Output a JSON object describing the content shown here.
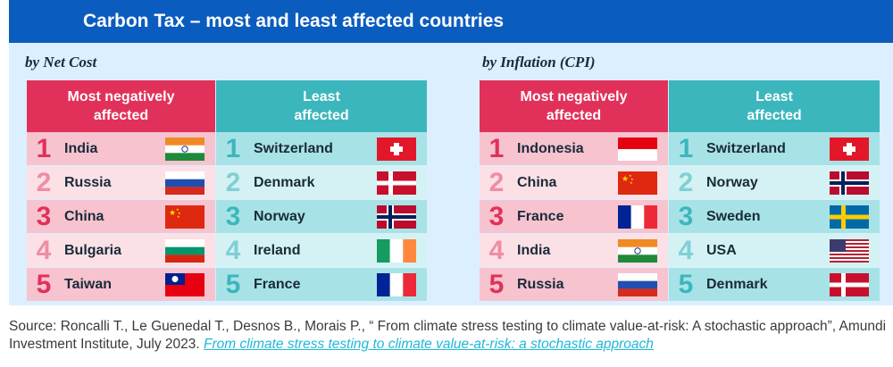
{
  "title": "Carbon Tax – most and least affected countries",
  "panels": [
    {
      "subtitle": "by Net Cost",
      "most_header": "Most negatively affected",
      "least_header": "Least affected",
      "most": [
        {
          "rank": "1",
          "name": "India",
          "flag": "india-flag"
        },
        {
          "rank": "2",
          "name": "Russia",
          "flag": "russia-flag"
        },
        {
          "rank": "3",
          "name": "China",
          "flag": "china-flag"
        },
        {
          "rank": "4",
          "name": "Bulgaria",
          "flag": "bulgaria-flag"
        },
        {
          "rank": "5",
          "name": "Taiwan",
          "flag": "taiwan-flag"
        }
      ],
      "least": [
        {
          "rank": "1",
          "name": "Switzerland",
          "flag": "switzerland-flag"
        },
        {
          "rank": "2",
          "name": "Denmark",
          "flag": "denmark-flag"
        },
        {
          "rank": "3",
          "name": "Norway",
          "flag": "norway-flag"
        },
        {
          "rank": "4",
          "name": "Ireland",
          "flag": "ireland-flag"
        },
        {
          "rank": "5",
          "name": "France",
          "flag": "france-flag"
        }
      ]
    },
    {
      "subtitle": "by Inflation (CPI)",
      "most_header": "Most negatively affected",
      "least_header": "Least affected",
      "most": [
        {
          "rank": "1",
          "name": "Indonesia",
          "flag": "indonesia-flag"
        },
        {
          "rank": "2",
          "name": "China",
          "flag": "china-flag"
        },
        {
          "rank": "3",
          "name": "France",
          "flag": "france-flag"
        },
        {
          "rank": "4",
          "name": "India",
          "flag": "india-flag"
        },
        {
          "rank": "5",
          "name": "Russia",
          "flag": "russia-flag"
        }
      ],
      "least": [
        {
          "rank": "1",
          "name": "Switzerland",
          "flag": "switzerland-flag"
        },
        {
          "rank": "2",
          "name": "Norway",
          "flag": "norway-flag"
        },
        {
          "rank": "3",
          "name": "Sweden",
          "flag": "sweden-flag"
        },
        {
          "rank": "4",
          "name": "USA",
          "flag": "usa-flag"
        },
        {
          "rank": "5",
          "name": "Denmark",
          "flag": "denmark-flag"
        }
      ]
    }
  ],
  "source_text": "Source: Roncalli T., Le Guenedal T., Desnos B., Morais P., “ From climate stress testing to climate value-at-risk: A stochastic approach”, Amundi Investment Institute, July 2023. ",
  "source_link": "From climate stress testing to climate value-at-risk: a stochastic approach",
  "colors": {
    "header_bg": "#0b5cbf",
    "panel_bg": "#dcefff",
    "most_accent": "#e1315a",
    "least_accent": "#3cb6bd",
    "link": "#1db8d8"
  }
}
